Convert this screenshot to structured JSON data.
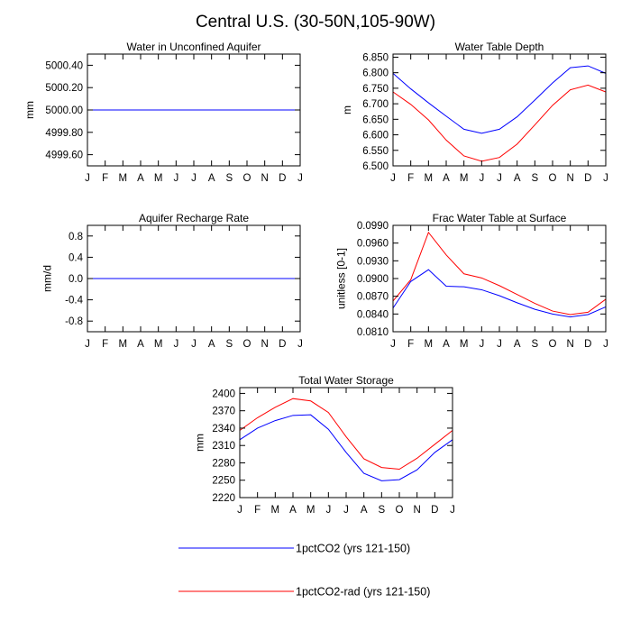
{
  "page": {
    "title": "Central U.S. (30-50N,105-90W)"
  },
  "legend": [
    {
      "label": "1pctCO2 (yrs 121-150)",
      "color": "#0000ff"
    },
    {
      "label": "1pctCO2-rad (yrs 121-150)",
      "color": "#ff0000"
    }
  ],
  "chart_data": [
    {
      "type": "line",
      "title": "Water in Unconfined Aquifer",
      "ylabel": "mm",
      "categories": [
        "J",
        "F",
        "M",
        "A",
        "M",
        "J",
        "J",
        "A",
        "S",
        "O",
        "N",
        "D",
        "J"
      ],
      "ylim": [
        4999.5,
        5000.5
      ],
      "yticks": [
        4999.6,
        4999.8,
        5000.0,
        5000.2,
        5000.4
      ],
      "ytick_labels": [
        "4999.60",
        "4999.80",
        "5000.00",
        "5000.20",
        "5000.40"
      ],
      "series": [
        {
          "color": "#ff0000",
          "values": [
            5000,
            5000,
            5000,
            5000,
            5000,
            5000,
            5000,
            5000,
            5000,
            5000,
            5000,
            5000,
            5000
          ]
        },
        {
          "color": "#0000ff",
          "values": [
            5000,
            5000,
            5000,
            5000,
            5000,
            5000,
            5000,
            5000,
            5000,
            5000,
            5000,
            5000,
            5000
          ]
        }
      ]
    },
    {
      "type": "line",
      "title": "Water Table Depth",
      "ylabel": "m",
      "categories": [
        "J",
        "F",
        "M",
        "A",
        "M",
        "J",
        "J",
        "A",
        "S",
        "O",
        "N",
        "D",
        "J"
      ],
      "ylim": [
        6.5,
        6.86
      ],
      "yticks": [
        6.5,
        6.55,
        6.6,
        6.65,
        6.7,
        6.75,
        6.8,
        6.85
      ],
      "ytick_labels": [
        "6.500",
        "6.550",
        "6.600",
        "6.650",
        "6.700",
        "6.750",
        "6.800",
        "6.850"
      ],
      "series": [
        {
          "color": "#0000ff",
          "values": [
            6.798,
            6.748,
            6.703,
            6.66,
            6.618,
            6.605,
            6.618,
            6.658,
            6.712,
            6.767,
            6.816,
            6.822,
            6.798
          ]
        },
        {
          "color": "#ff0000",
          "values": [
            6.738,
            6.698,
            6.648,
            6.583,
            6.532,
            6.515,
            6.527,
            6.57,
            6.632,
            6.695,
            6.745,
            6.76,
            6.738
          ]
        }
      ]
    },
    {
      "type": "line",
      "title": "Aquifer Recharge Rate",
      "ylabel": "mm/d",
      "categories": [
        "J",
        "F",
        "M",
        "A",
        "M",
        "J",
        "J",
        "A",
        "S",
        "O",
        "N",
        "D",
        "J"
      ],
      "ylim": [
        -1.0,
        1.0
      ],
      "yticks": [
        -0.8,
        -0.4,
        0.0,
        0.4,
        0.8
      ],
      "ytick_labels": [
        "-0.8",
        "-0.4",
        "0.0",
        "0.4",
        "0.8"
      ],
      "series": [
        {
          "color": "#ff0000",
          "values": [
            0,
            0,
            0,
            0,
            0,
            0,
            0,
            0,
            0,
            0,
            0,
            0,
            0
          ]
        },
        {
          "color": "#0000ff",
          "values": [
            0,
            0,
            0,
            0,
            0,
            0,
            0,
            0,
            0,
            0,
            0,
            0,
            0
          ]
        }
      ]
    },
    {
      "type": "line",
      "title": "Frac Water Table at Surface",
      "ylabel": "unitless [0-1]",
      "categories": [
        "J",
        "F",
        "M",
        "A",
        "M",
        "J",
        "J",
        "A",
        "S",
        "O",
        "N",
        "D",
        "J"
      ],
      "ylim": [
        0.081,
        0.099
      ],
      "yticks": [
        0.081,
        0.084,
        0.087,
        0.09,
        0.093,
        0.096,
        0.099
      ],
      "ytick_labels": [
        "0.0810",
        "0.0840",
        "0.0870",
        "0.0900",
        "0.0930",
        "0.0960",
        "0.0990"
      ],
      "series": [
        {
          "color": "#0000ff",
          "values": [
            0.085,
            0.0895,
            0.0915,
            0.0887,
            0.0886,
            0.0881,
            0.0871,
            0.0859,
            0.0848,
            0.084,
            0.0835,
            0.0839,
            0.0852
          ]
        },
        {
          "color": "#ff0000",
          "values": [
            0.0862,
            0.0898,
            0.0978,
            0.094,
            0.0908,
            0.0901,
            0.0888,
            0.0873,
            0.0858,
            0.0845,
            0.0839,
            0.0843,
            0.0865
          ]
        }
      ]
    },
    {
      "type": "line",
      "title": "Total Water Storage",
      "ylabel": "mm",
      "categories": [
        "J",
        "F",
        "M",
        "A",
        "M",
        "J",
        "J",
        "A",
        "S",
        "O",
        "N",
        "D",
        "J"
      ],
      "ylim": [
        2220,
        2410
      ],
      "yticks": [
        2220,
        2250,
        2280,
        2310,
        2340,
        2370,
        2400
      ],
      "ytick_labels": [
        "2220",
        "2250",
        "2280",
        "2310",
        "2340",
        "2370",
        "2400"
      ],
      "series": [
        {
          "color": "#0000ff",
          "values": [
            2320,
            2340,
            2353,
            2362,
            2363,
            2338,
            2298,
            2262,
            2249,
            2251,
            2268,
            2298,
            2320
          ]
        },
        {
          "color": "#ff0000",
          "values": [
            2336,
            2358,
            2376,
            2391,
            2387,
            2367,
            2325,
            2287,
            2272,
            2269,
            2288,
            2312,
            2336
          ]
        }
      ]
    }
  ]
}
